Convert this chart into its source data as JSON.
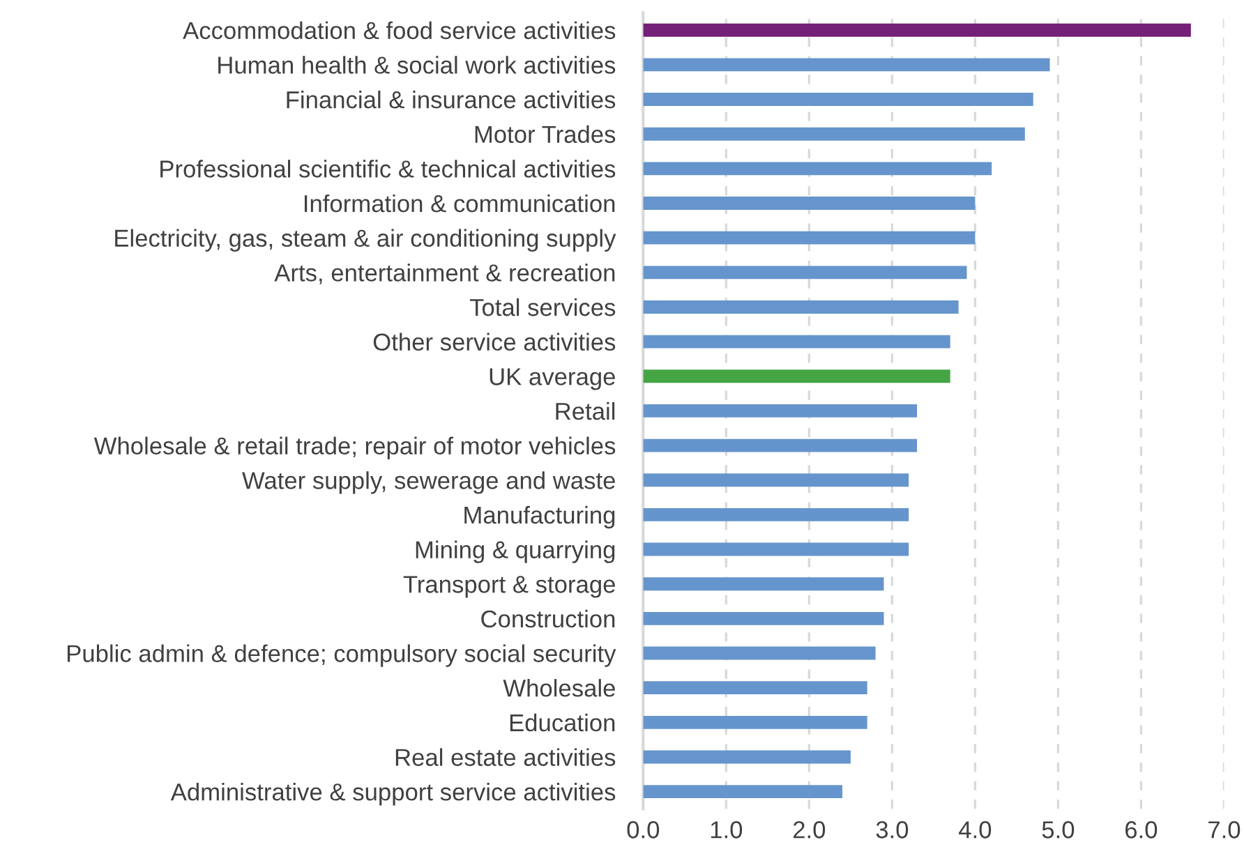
{
  "chart_data": {
    "type": "bar",
    "orientation": "horizontal",
    "categories": [
      "Accommodation & food service activities",
      "Human health & social work activities",
      "Financial & insurance activities",
      "Motor Trades",
      "Professional scientific & technical activities",
      "Information & communication",
      "Electricity, gas, steam & air conditioning supply",
      "Arts, entertainment & recreation",
      "Total services",
      "Other service activities",
      "UK average",
      "Retail",
      "Wholesale & retail trade; repair of motor vehicles",
      "Water supply, sewerage and waste",
      "Manufacturing",
      "Mining & quarrying",
      "Transport & storage",
      "Construction",
      "Public admin & defence; compulsory social security",
      "Wholesale",
      "Education",
      "Real estate activities",
      "Administrative & support service activities"
    ],
    "values": [
      6.6,
      4.9,
      4.7,
      4.6,
      4.2,
      4.0,
      4.0,
      3.9,
      3.8,
      3.7,
      3.7,
      3.3,
      3.3,
      3.2,
      3.2,
      3.2,
      2.9,
      2.9,
      2.8,
      2.7,
      2.7,
      2.5,
      2.4
    ],
    "colors": [
      "#741f78",
      "#6595cc",
      "#6595cc",
      "#6595cc",
      "#6595cc",
      "#6595cc",
      "#6595cc",
      "#6595cc",
      "#6595cc",
      "#6595cc",
      "#45a545",
      "#6595cc",
      "#6595cc",
      "#6595cc",
      "#6595cc",
      "#6595cc",
      "#6595cc",
      "#6595cc",
      "#6595cc",
      "#6595cc",
      "#6595cc",
      "#6595cc",
      "#6595cc"
    ],
    "xlim": [
      0,
      7
    ],
    "xticks": [
      {
        "value": 0,
        "label": "0.0"
      },
      {
        "value": 1,
        "label": "1.0"
      },
      {
        "value": 2,
        "label": "2.0"
      },
      {
        "value": 3,
        "label": "3.0"
      },
      {
        "value": 4,
        "label": "4.0"
      },
      {
        "value": 5,
        "label": "5.0"
      },
      {
        "value": 6,
        "label": "6.0"
      },
      {
        "value": 7,
        "label": "7.0"
      }
    ],
    "grid": "x"
  }
}
